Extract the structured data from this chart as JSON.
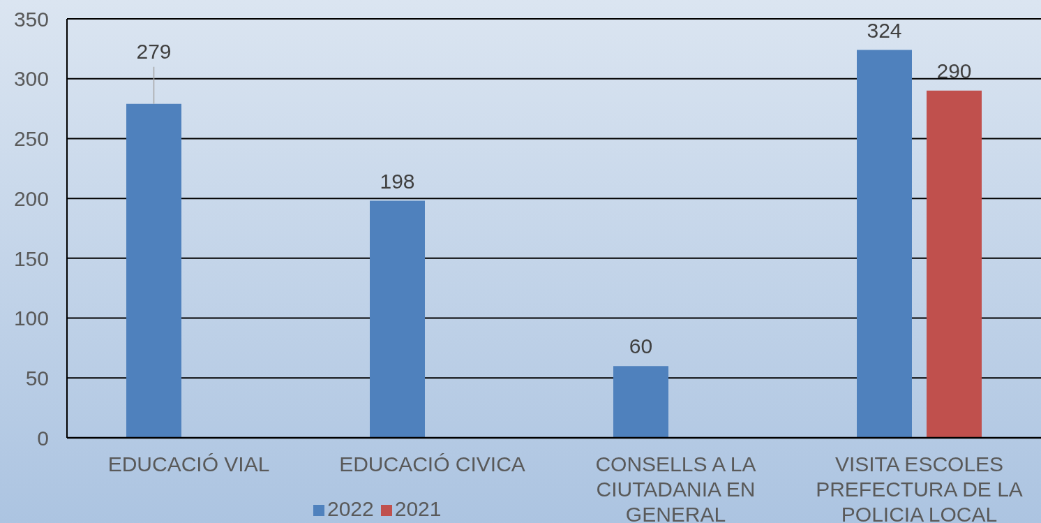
{
  "chart_data": {
    "type": "bar",
    "categories": [
      "EDUCACIÓ VIAL",
      "EDUCACIÓ CIVICA",
      "CONSELLS A LA CIUTADANIA EN GENERAL",
      "VISITA ESCOLES PREFECTURA DE LA POLICIA LOCAL"
    ],
    "series": [
      {
        "name": "2022",
        "color": "#4f81bd",
        "values": [
          279,
          198,
          60,
          324
        ]
      },
      {
        "name": "2021",
        "color": "#c0504d",
        "values": [
          null,
          null,
          null,
          290
        ]
      }
    ],
    "ylim": [
      0,
      350
    ],
    "yticks": [
      0,
      50,
      100,
      150,
      200,
      250,
      300,
      350
    ],
    "grid": "y",
    "legend": "bottom",
    "data_labels": true
  }
}
